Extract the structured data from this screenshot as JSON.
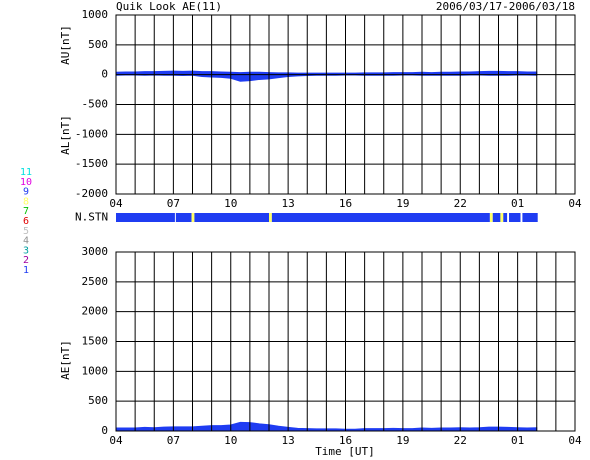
{
  "chart_data": [
    {
      "type": "area",
      "title": "Quik Look AE(11)",
      "subtitle": "2006/03/17-2006/03/18",
      "ylabels": [
        "AU[nT]",
        "AL[nT]"
      ],
      "xlim": [
        0,
        24
      ],
      "xticks": [
        {
          "value": 0,
          "label": "04"
        },
        {
          "value": 3,
          "label": "07"
        },
        {
          "value": 6,
          "label": "10"
        },
        {
          "value": 9,
          "label": "13"
        },
        {
          "value": 12,
          "label": "16"
        },
        {
          "value": 15,
          "label": "19"
        },
        {
          "value": 18,
          "label": "22"
        },
        {
          "value": 21,
          "label": "01"
        },
        {
          "value": 24,
          "label": "04"
        }
      ],
      "xgrid": [
        0,
        1,
        2,
        3,
        4,
        5,
        6,
        7,
        8,
        9,
        10,
        11,
        12,
        13,
        14,
        15,
        16,
        17,
        18,
        19,
        20,
        21,
        22,
        23,
        24
      ],
      "ylim": [
        -2000,
        1000
      ],
      "yticks": [
        -2000,
        -1500,
        -1000,
        -500,
        0,
        500,
        1000
      ],
      "x": [
        0,
        0.5,
        1,
        1.5,
        2,
        2.5,
        3,
        3.5,
        4,
        4.5,
        5,
        5.5,
        6,
        6.5,
        7,
        7.5,
        8,
        8.5,
        9,
        9.5,
        10,
        10.5,
        11,
        11.5,
        12,
        12.5,
        13,
        13.5,
        14,
        14.5,
        15,
        15.5,
        16,
        16.5,
        17,
        17.5,
        18,
        18.5,
        19,
        19.5,
        20,
        20.5,
        21,
        21.5,
        22
      ],
      "series": [
        {
          "color": "#1f3cf2",
          "values": [
            40,
            45,
            45,
            50,
            50,
            55,
            60,
            55,
            60,
            50,
            50,
            45,
            40,
            35,
            40,
            40,
            35,
            30,
            30,
            25,
            25,
            25,
            25,
            25,
            25,
            25,
            30,
            30,
            30,
            35,
            35,
            35,
            40,
            35,
            40,
            40,
            45,
            45,
            50,
            55,
            55,
            50,
            50,
            45,
            45
          ]
        },
        {
          "color": "#1f3cf2",
          "values": [
            -10,
            -5,
            -5,
            -10,
            -5,
            -10,
            -10,
            -15,
            -10,
            -30,
            -40,
            -45,
            -60,
            -110,
            -100,
            -80,
            -70,
            -50,
            -30,
            -20,
            -15,
            -10,
            -10,
            -10,
            -5,
            -5,
            -10,
            -10,
            -10,
            -10,
            -5,
            -5,
            -10,
            -10,
            -10,
            -10,
            -10,
            -5,
            -5,
            -10,
            -10,
            -10,
            -5,
            -5,
            -10
          ]
        }
      ]
    },
    {
      "type": "stations",
      "label": "N.STN",
      "xlim": [
        0,
        24
      ],
      "segments": [
        {
          "x": [
            0,
            3.08
          ],
          "color": "#1f3cf2"
        },
        {
          "x": [
            3.13,
            3.95
          ],
          "color": "#1f3cf2"
        },
        {
          "x": [
            3.95,
            4.1
          ],
          "color": "#ffff66"
        },
        {
          "x": [
            4.1,
            8.0
          ],
          "color": "#1f3cf2"
        },
        {
          "x": [
            8.0,
            8.15
          ],
          "color": "#ffff66"
        },
        {
          "x": [
            8.15,
            19.55
          ],
          "color": "#1f3cf2"
        },
        {
          "x": [
            19.55,
            19.7
          ],
          "color": "#ffff66"
        },
        {
          "x": [
            19.7,
            20.1
          ],
          "color": "#1f3cf2"
        },
        {
          "x": [
            20.1,
            20.25
          ],
          "color": "#ffff66"
        },
        {
          "x": [
            20.25,
            20.45
          ],
          "color": "#1f3cf2"
        },
        {
          "x": [
            20.55,
            21.15
          ],
          "color": "#1f3cf2"
        },
        {
          "x": [
            21.25,
            22.05
          ],
          "color": "#1f3cf2"
        }
      ],
      "legend": [
        {
          "label": 11,
          "color": "#00e0e0"
        },
        {
          "label": 10,
          "color": "#e000e0"
        },
        {
          "label": 9,
          "color": "#1f3cf2"
        },
        {
          "label": 8,
          "color": "#ffff66"
        },
        {
          "label": 7,
          "color": "#00c000"
        },
        {
          "label": 6,
          "color": "#e00000"
        },
        {
          "label": 5,
          "color": "#c0c0c0"
        },
        {
          "label": 4,
          "color": "#909090"
        },
        {
          "label": 3,
          "color": "#00a0a0"
        },
        {
          "label": 2,
          "color": "#a000a0"
        },
        {
          "label": 1,
          "color": "#1f3cf2"
        }
      ]
    },
    {
      "type": "area",
      "ylabels": [
        "AE[nT]"
      ],
      "xlabel": "Time [UT]",
      "xlim": [
        0,
        24
      ],
      "xticks": [
        {
          "value": 0,
          "label": "04"
        },
        {
          "value": 3,
          "label": "07"
        },
        {
          "value": 6,
          "label": "10"
        },
        {
          "value": 9,
          "label": "13"
        },
        {
          "value": 12,
          "label": "16"
        },
        {
          "value": 15,
          "label": "19"
        },
        {
          "value": 18,
          "label": "22"
        },
        {
          "value": 21,
          "label": "01"
        },
        {
          "value": 24,
          "label": "04"
        }
      ],
      "xgrid": [
        0,
        1,
        2,
        3,
        4,
        5,
        6,
        7,
        8,
        9,
        10,
        11,
        12,
        13,
        14,
        15,
        16,
        17,
        18,
        19,
        20,
        21,
        22,
        23,
        24
      ],
      "ylim": [
        0,
        3000
      ],
      "yticks": [
        0,
        500,
        1000,
        1500,
        2000,
        2500,
        3000
      ],
      "x": [
        0,
        0.5,
        1,
        1.5,
        2,
        2.5,
        3,
        3.5,
        4,
        4.5,
        5,
        5.5,
        6,
        6.5,
        7,
        7.5,
        8,
        8.5,
        9,
        9.5,
        10,
        10.5,
        11,
        11.5,
        12,
        12.5,
        13,
        13.5,
        14,
        14.5,
        15,
        15.5,
        16,
        16.5,
        17,
        17.5,
        18,
        18.5,
        19,
        19.5,
        20,
        20.5,
        21,
        21.5,
        22
      ],
      "series": [
        {
          "color": "#1f3cf2",
          "values": [
            50,
            50,
            50,
            60,
            55,
            65,
            70,
            70,
            70,
            80,
            90,
            90,
            100,
            145,
            140,
            120,
            105,
            80,
            60,
            45,
            40,
            35,
            35,
            35,
            30,
            30,
            40,
            40,
            40,
            45,
            40,
            40,
            50,
            45,
            50,
            50,
            55,
            50,
            55,
            65,
            65,
            60,
            55,
            50,
            55
          ]
        }
      ]
    }
  ]
}
